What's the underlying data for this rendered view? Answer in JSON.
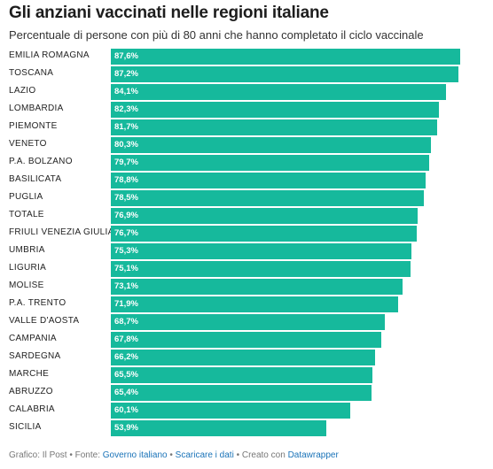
{
  "header": {
    "title": "Gli anziani vaccinati nelle regioni italiane",
    "subtitle": "Percentuale di persone con più di 80 anni che hanno completato il ciclo vaccinale"
  },
  "chart_data": {
    "type": "bar",
    "orientation": "horizontal",
    "bar_color": "#16b99c",
    "label_color": "#ffffff",
    "xlim": [
      0,
      100
    ],
    "grid": false,
    "categories": [
      "EMILIA ROMAGNA",
      "TOSCANA",
      "LAZIO",
      "LOMBARDIA",
      "PIEMONTE",
      "VENETO",
      "P.A. BOLZANO",
      "BASILICATA",
      "PUGLIA",
      "TOTALE",
      "FRIULI VENEZIA GIULIA",
      "UMBRIA",
      "LIGURIA",
      "MOLISE",
      "P.A. TRENTO",
      "VALLE D'AOSTA",
      "CAMPANIA",
      "SARDEGNA",
      "MARCHE",
      "ABRUZZO",
      "CALABRIA",
      "SICILIA"
    ],
    "values": [
      87.6,
      87.2,
      84.1,
      82.3,
      81.7,
      80.3,
      79.7,
      78.8,
      78.5,
      76.9,
      76.7,
      75.3,
      75.1,
      73.1,
      71.9,
      68.7,
      67.8,
      66.2,
      65.5,
      65.4,
      60.1,
      53.9
    ],
    "value_labels": [
      "87,6%",
      "87,2%",
      "84,1%",
      "82,3%",
      "81,7%",
      "80,3%",
      "79,7%",
      "78,8%",
      "78,5%",
      "76,9%",
      "76,7%",
      "75,3%",
      "75,1%",
      "73,1%",
      "71,9%",
      "68,7%",
      "67,8%",
      "66,2%",
      "65,5%",
      "65,4%",
      "60,1%",
      "53,9%"
    ]
  },
  "footer": {
    "prefix": "Grafico: Il Post • Fonte: ",
    "source_link": "Governo italiano",
    "sep1": " • ",
    "download_link": "Scaricare i dati",
    "sep2": " • Creato con ",
    "tool_link": "Datawrapper"
  }
}
